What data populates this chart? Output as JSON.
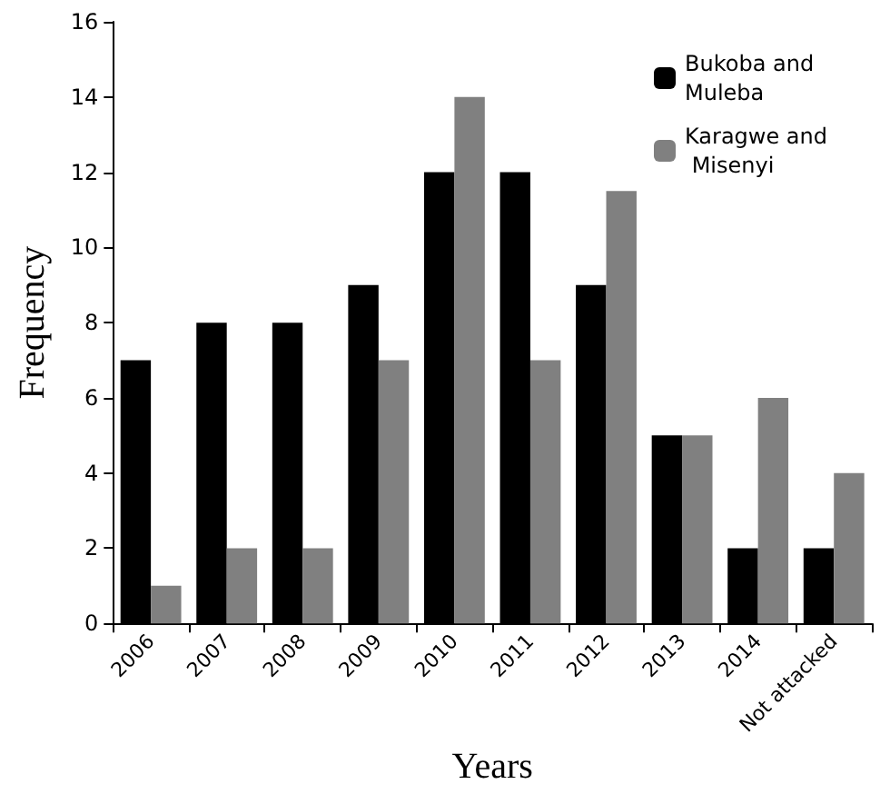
{
  "chart_data": {
    "type": "bar",
    "xlabel": "Years",
    "ylabel": "Frequency",
    "categories": [
      "2006",
      "2007",
      "2008",
      "2009",
      "2010",
      "2011",
      "2012",
      "2013",
      "2014",
      "Not attacked"
    ],
    "series": [
      {
        "name": "Bukoba and Muleba",
        "color": "#000000",
        "values": [
          7,
          8,
          8,
          9,
          12,
          12,
          9,
          5,
          2,
          2
        ]
      },
      {
        "name": "Karagwe and Misenyi",
        "color": "#808080",
        "values": [
          1,
          2,
          2,
          7,
          14,
          7,
          11.5,
          5,
          6,
          4
        ]
      }
    ],
    "ylim": [
      0,
      16
    ],
    "yticks": [
      0,
      2,
      4,
      6,
      8,
      10,
      12,
      14,
      16
    ],
    "grid": false,
    "legend": "top right"
  }
}
